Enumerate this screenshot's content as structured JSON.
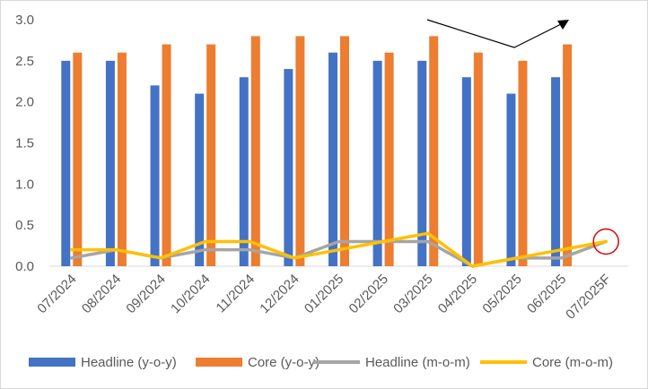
{
  "chart_data": {
    "type": "bar",
    "categories": [
      "07/2024",
      "08/2024",
      "09/2024",
      "10/2024",
      "11/2024",
      "12/2024",
      "01/2025",
      "02/2025",
      "03/2025",
      "04/2025",
      "05/2025",
      "06/2025",
      "07/2025F"
    ],
    "ylim": [
      0,
      3.0
    ],
    "yticks": [
      "0.0",
      "0.5",
      "1.0",
      "1.5",
      "2.0",
      "2.5",
      "3.0"
    ],
    "series": [
      {
        "name": "Headline (y-o-y)",
        "kind": "bar",
        "color": "#4472C4",
        "values": [
          2.5,
          2.5,
          2.2,
          2.1,
          2.3,
          2.4,
          2.6,
          2.5,
          2.5,
          2.3,
          2.1,
          2.3,
          null
        ]
      },
      {
        "name": "Core (y-o-y)",
        "kind": "bar",
        "color": "#ED7D31",
        "values": [
          2.6,
          2.6,
          2.7,
          2.7,
          2.8,
          2.8,
          2.8,
          2.6,
          2.8,
          2.6,
          2.5,
          2.7,
          null
        ]
      },
      {
        "name": "Headline (m-o-m)",
        "kind": "line",
        "color": "#A5A5A5",
        "values": [
          0.1,
          0.2,
          0.1,
          0.2,
          0.2,
          0.1,
          0.3,
          0.3,
          0.3,
          0.0,
          0.1,
          0.1,
          0.3
        ]
      },
      {
        "name": "Core (m-o-m)",
        "kind": "line",
        "color": "#FFC000",
        "values": [
          0.2,
          0.2,
          0.1,
          0.3,
          0.3,
          0.1,
          0.2,
          0.3,
          0.4,
          0.0,
          0.1,
          0.2,
          0.3
        ]
      }
    ],
    "annotations": [
      {
        "type": "circle",
        "category": "07/2025F",
        "value": 0.3,
        "color": "#E00000"
      },
      {
        "type": "trend-arrow",
        "color": "#000000"
      }
    ],
    "grid": false,
    "legend": "bottom"
  }
}
